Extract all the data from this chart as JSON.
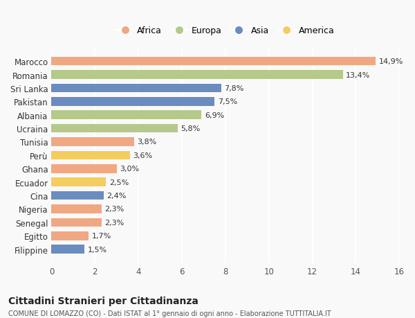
{
  "categories": [
    "Filippine",
    "Egitto",
    "Senegal",
    "Nigeria",
    "Cina",
    "Ecuador",
    "Ghana",
    "Perù",
    "Tunisia",
    "Ucraina",
    "Albania",
    "Pakistan",
    "Sri Lanka",
    "Romania",
    "Marocco"
  ],
  "values": [
    1.5,
    1.7,
    2.3,
    2.3,
    2.4,
    2.5,
    3.0,
    3.6,
    3.8,
    5.8,
    6.9,
    7.5,
    7.8,
    13.4,
    14.9
  ],
  "colors": [
    "#6b8cbf",
    "#f0a882",
    "#f0a882",
    "#f0a882",
    "#6b8cbf",
    "#f5cc5e",
    "#f0a882",
    "#f5cc5e",
    "#f0a882",
    "#b5c98a",
    "#b5c98a",
    "#6b8cbf",
    "#6b8cbf",
    "#b5c98a",
    "#f0a882"
  ],
  "labels": [
    "1,5%",
    "1,7%",
    "2,3%",
    "2,3%",
    "2,4%",
    "2,5%",
    "3,0%",
    "3,6%",
    "3,8%",
    "5,8%",
    "6,9%",
    "7,5%",
    "7,8%",
    "13,4%",
    "14,9%"
  ],
  "legend": [
    {
      "label": "Africa",
      "color": "#f0a882"
    },
    {
      "label": "Europa",
      "color": "#b5c98a"
    },
    {
      "label": "Asia",
      "color": "#6b8cbf"
    },
    {
      "label": "America",
      "color": "#f5cc5e"
    }
  ],
  "xlim": [
    0,
    16
  ],
  "xticks": [
    0,
    2,
    4,
    6,
    8,
    10,
    12,
    14,
    16
  ],
  "title": "Cittadini Stranieri per Cittadinanza",
  "subtitle": "COMUNE DI LOMAZZO (CO) - Dati ISTAT al 1° gennaio di ogni anno - Elaborazione TUTTITALIA.IT",
  "bg_color": "#f9f9f9",
  "grid_color": "#ffffff",
  "bar_height": 0.65
}
